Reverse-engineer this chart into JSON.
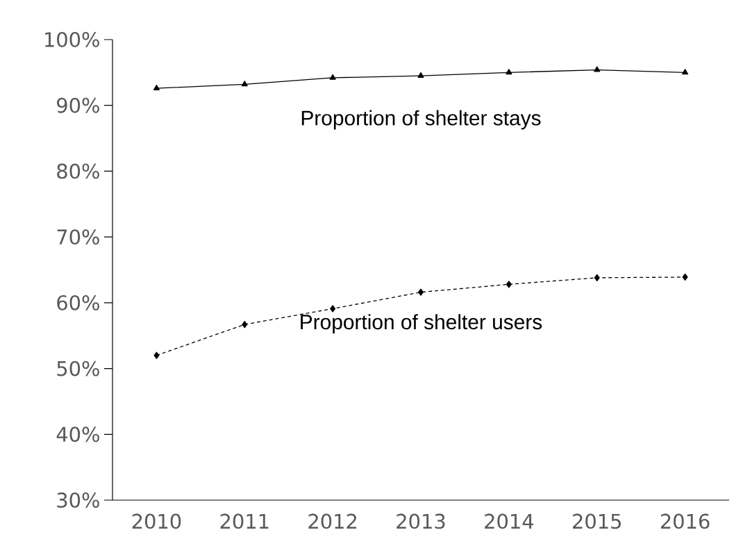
{
  "chart_data": {
    "type": "line",
    "categories": [
      "2010",
      "2011",
      "2012",
      "2013",
      "2014",
      "2015",
      "2016"
    ],
    "series": [
      {
        "name": "Proportion of shelter stays",
        "color": "#000000",
        "marker": "triangle",
        "line_style": "solid",
        "values": [
          92.6,
          93.2,
          94.2,
          94.5,
          95.0,
          95.4,
          95.0
        ]
      },
      {
        "name": "Proportion of shelter users",
        "color": "#000000",
        "marker": "diamond",
        "line_style": "dashed",
        "values": [
          52.0,
          56.7,
          59.1,
          61.6,
          62.8,
          63.8,
          63.9
        ]
      }
    ],
    "ylim": [
      30,
      100
    ],
    "yticks": [
      {
        "value": 30,
        "label": "30%"
      },
      {
        "value": 40,
        "label": "40%"
      },
      {
        "value": 50,
        "label": "50%"
      },
      {
        "value": 60,
        "label": "60%"
      },
      {
        "value": 70,
        "label": "70%"
      },
      {
        "value": 80,
        "label": "80%"
      },
      {
        "value": 90,
        "label": "90%"
      },
      {
        "value": 100,
        "label": "100%"
      }
    ],
    "grid": false,
    "legend": false
  }
}
